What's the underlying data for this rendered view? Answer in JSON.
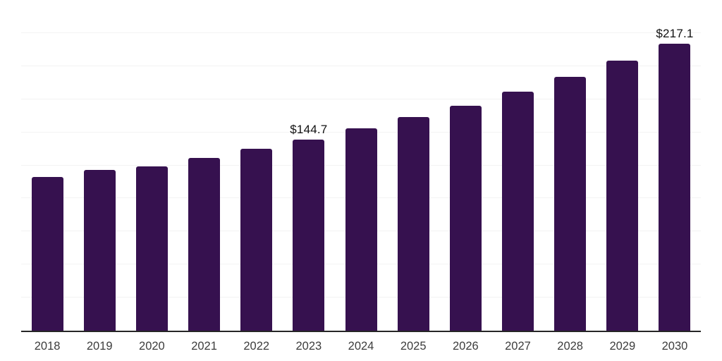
{
  "page": {
    "background_color": "#ffffff"
  },
  "chart_data": {
    "type": "bar",
    "title": "",
    "xlabel": "",
    "ylabel": "",
    "categories": [
      "2018",
      "2019",
      "2020",
      "2021",
      "2022",
      "2023",
      "2024",
      "2025",
      "2026",
      "2027",
      "2028",
      "2029",
      "2030"
    ],
    "values": [
      116.2,
      121.6,
      124.3,
      130.6,
      137.5,
      144.7,
      152.9,
      161.4,
      170.2,
      180.6,
      191.8,
      204.0,
      217.1
    ],
    "data_labels": [
      "",
      "",
      "",
      "",
      "",
      "$144.7",
      "",
      "",
      "",
      "",
      "",
      "",
      "$217.1"
    ],
    "ylim": [
      0,
      250
    ],
    "grid_step": 25,
    "grid": "horizontal",
    "legend": "none",
    "y_tick_labels_visible": false,
    "bar_color": "#36114f",
    "grid_color": "#f3f3f3",
    "top_grid_color": "#e6e6e6",
    "axis_line_color": "#262626",
    "tick_label_color": "#3d3d3d",
    "value_label_color": "#111111"
  }
}
